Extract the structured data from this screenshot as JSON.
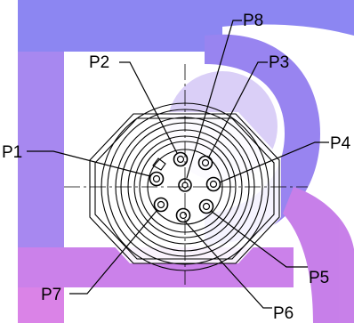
{
  "diagram": {
    "pins": [
      {
        "id": "P1",
        "label": "P1"
      },
      {
        "id": "P2",
        "label": "P2"
      },
      {
        "id": "P3",
        "label": "P3"
      },
      {
        "id": "P4",
        "label": "P4"
      },
      {
        "id": "P5",
        "label": "P5"
      },
      {
        "id": "P6",
        "label": "P6"
      },
      {
        "id": "P7",
        "label": "P7"
      },
      {
        "id": "P8",
        "label": "P8"
      }
    ],
    "colors": {
      "line": "#000000",
      "watermark_upper": "#7b74f0",
      "watermark_lower": "#c86ee6",
      "watermark_mid": "#a070ea"
    }
  }
}
